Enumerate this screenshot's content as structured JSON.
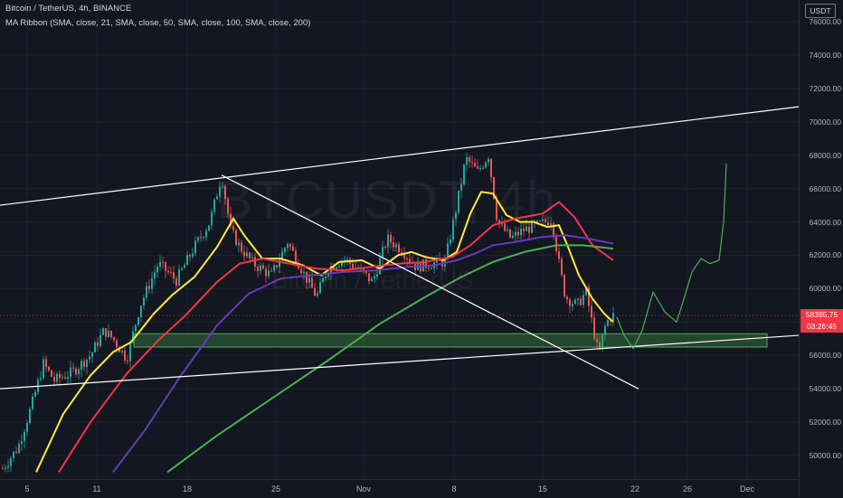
{
  "header": {
    "symbol_line": "Bitcoin / TetherUS, 4h, BINANCE",
    "indicator_line": "MA Ribbon (SMA, close, 21, SMA, close, 50, SMA, close, 100, SMA, close, 200)"
  },
  "watermark": {
    "main": "BTCUSDT, 4h",
    "sub": "Bitcoin / TetherUS"
  },
  "currency_label": "USDT",
  "last_price": {
    "price": "58395.75",
    "countdown": "03:26:45"
  },
  "colors": {
    "background": "#131722",
    "candle_up": "#26a69a",
    "candle_down": "#ef5350",
    "ma21": "#ffeb3b",
    "ma50": "#f23645",
    "ma100": "#673ab7",
    "ma200": "#4caf50",
    "trendline": "#ffffff",
    "zone_fill": "rgba(76,175,80,0.3)",
    "projection": "#4caf50",
    "price_tag": "#f23645"
  },
  "price_axis": {
    "ticks": [
      "76000.00",
      "74000.00",
      "72000.00",
      "70000.00",
      "68000.00",
      "66000.00",
      "64000.00",
      "62000.00",
      "60000.00",
      "58000.00",
      "56000.00",
      "54000.00",
      "52000.00",
      "50000.00"
    ]
  },
  "time_axis": {
    "labels": [
      "5",
      "11",
      "18",
      "25",
      "Nov",
      "8",
      "15",
      "22",
      "26",
      "Dec"
    ]
  },
  "chart_data": {
    "type": "candlestick",
    "symbol": "BTCUSDT",
    "interval": "4h",
    "ylim": [
      49000,
      77500
    ],
    "key_prices": {
      "last": 58395.75,
      "swing_high_oct": 67000,
      "swing_high_nov": 69000,
      "recent_low": 55600,
      "support_zone": [
        56500,
        57300
      ]
    },
    "moving_averages": [
      "SMA 21",
      "SMA 50",
      "SMA 100",
      "SMA 200"
    ]
  }
}
